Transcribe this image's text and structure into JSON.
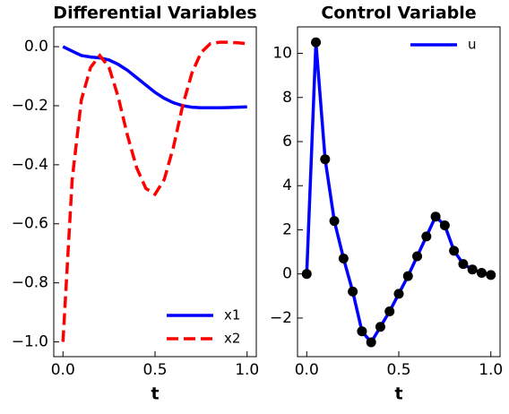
{
  "chart_data": [
    {
      "type": "line",
      "title": "Differential Variables",
      "xlabel": "t",
      "x": [
        0,
        0.05,
        0.1,
        0.15,
        0.2,
        0.25,
        0.3,
        0.35,
        0.4,
        0.45,
        0.5,
        0.55,
        0.6,
        0.65,
        0.7,
        0.75,
        0.8,
        0.85,
        0.9,
        0.95,
        1.0
      ],
      "series": [
        {
          "name": "x1",
          "color": "#0000ff",
          "dash": "solid",
          "values": [
            0,
            -0.015,
            -0.03,
            -0.035,
            -0.038,
            -0.045,
            -0.06,
            -0.08,
            -0.105,
            -0.13,
            -0.155,
            -0.175,
            -0.19,
            -0.2,
            -0.205,
            -0.207,
            -0.207,
            -0.207,
            -0.206,
            -0.205,
            -0.204
          ]
        },
        {
          "name": "x2",
          "color": "#ff0000",
          "dash": "dashed",
          "values": [
            -1,
            -0.45,
            -0.18,
            -0.07,
            -0.03,
            -0.07,
            -0.17,
            -0.3,
            -0.41,
            -0.48,
            -0.5,
            -0.45,
            -0.34,
            -0.2,
            -0.09,
            -0.02,
            0.01,
            0.015,
            0.015,
            0.013,
            0.01
          ]
        }
      ],
      "xlim": [
        -0.05,
        1.05
      ],
      "ylim": [
        -1.05,
        0.067
      ],
      "xticks": [
        {
          "value": 0,
          "label": "0.0"
        },
        {
          "value": 0.5,
          "label": "0.5"
        },
        {
          "value": 1,
          "label": "1.0"
        }
      ],
      "yticks": [
        {
          "value": 0,
          "label": "0.0"
        },
        {
          "value": -0.2,
          "label": "−0.2"
        },
        {
          "value": -0.4,
          "label": "−0.4"
        },
        {
          "value": -0.6,
          "label": "−0.6"
        },
        {
          "value": -0.8,
          "label": "−0.8"
        },
        {
          "value": -1,
          "label": "−1.0"
        }
      ],
      "legend": "lower right"
    },
    {
      "type": "line",
      "title": "Control Variable",
      "xlabel": "t",
      "x": [
        0,
        0.05,
        0.1,
        0.15,
        0.2,
        0.25,
        0.3,
        0.35,
        0.4,
        0.45,
        0.5,
        0.55,
        0.6,
        0.65,
        0.7,
        0.75,
        0.8,
        0.85,
        0.9,
        0.95,
        1.0
      ],
      "series": [
        {
          "name": "u",
          "color": "#0000ff",
          "dash": "solid",
          "marker_color": "#000000",
          "values": [
            0,
            10.5,
            5.2,
            2.4,
            0.7,
            -0.8,
            -2.6,
            -3.1,
            -2.4,
            -1.7,
            -0.9,
            -0.1,
            0.8,
            1.7,
            2.6,
            2.2,
            1.05,
            0.45,
            0.2,
            0.05,
            -0.05
          ]
        }
      ],
      "xlim": [
        -0.05,
        1.05
      ],
      "ylim": [
        -3.75,
        11.2
      ],
      "xticks": [
        {
          "value": 0,
          "label": "0.0"
        },
        {
          "value": 0.5,
          "label": "0.5"
        },
        {
          "value": 1,
          "label": "1.0"
        }
      ],
      "yticks": [
        10,
        8,
        6,
        4,
        2,
        0,
        {
          "value": -2,
          "label": "−2"
        }
      ],
      "legend": "upper right"
    }
  ]
}
